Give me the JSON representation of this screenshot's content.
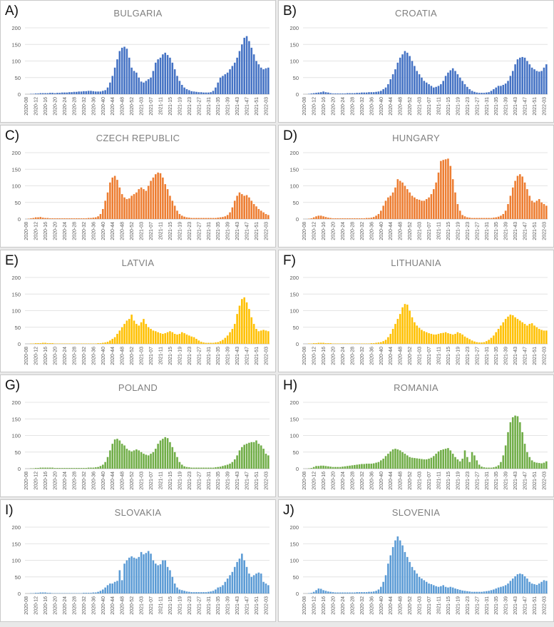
{
  "weeks": [
    "2020-08",
    "2020-09",
    "2020-10",
    "2020-11",
    "2020-12",
    "2020-13",
    "2020-14",
    "2020-15",
    "2020-16",
    "2020-17",
    "2020-18",
    "2020-19",
    "2020-20",
    "2020-21",
    "2020-22",
    "2020-23",
    "2020-24",
    "2020-25",
    "2020-26",
    "2020-27",
    "2020-28",
    "2020-29",
    "2020-30",
    "2020-31",
    "2020-32",
    "2020-33",
    "2020-34",
    "2020-35",
    "2020-36",
    "2020-37",
    "2020-38",
    "2020-39",
    "2020-40",
    "2020-41",
    "2020-42",
    "2020-43",
    "2020-44",
    "2020-45",
    "2020-46",
    "2020-47",
    "2020-48",
    "2020-49",
    "2020-50",
    "2020-51",
    "2020-52",
    "2020-53",
    "2021-01",
    "2021-02",
    "2021-03",
    "2021-04",
    "2021-05",
    "2021-06",
    "2021-07",
    "2021-08",
    "2021-09",
    "2021-10",
    "2021-11",
    "2021-12",
    "2021-13",
    "2021-14",
    "2021-15",
    "2021-16",
    "2021-17",
    "2021-18",
    "2021-19",
    "2021-20",
    "2021-21",
    "2021-22",
    "2021-23",
    "2021-24",
    "2021-25",
    "2021-26",
    "2021-27",
    "2021-28",
    "2021-29",
    "2021-30",
    "2021-31",
    "2021-32",
    "2021-33",
    "2021-34",
    "2021-35",
    "2021-36",
    "2021-37",
    "2021-38",
    "2021-39",
    "2021-40",
    "2021-41",
    "2021-42",
    "2021-43",
    "2021-44",
    "2021-45",
    "2021-46",
    "2021-47",
    "2021-48",
    "2021-49",
    "2021-50",
    "2021-51",
    "2021-52",
    "2022-01",
    "2022-02",
    "2022-03",
    "2022-04"
  ],
  "tick_labels": [
    "2020-08",
    "2020-12",
    "2020-16",
    "2020-20",
    "2020-24",
    "2020-28",
    "2020-32",
    "2020-36",
    "2020-40",
    "2020-44",
    "2020-48",
    "2020-52",
    "2021-03",
    "2021-07",
    "2021-11",
    "2021-15",
    "2021-19",
    "2021-23",
    "2021-27",
    "2021-31",
    "2021-35",
    "2021-39",
    "2021-43",
    "2021-47",
    "2021-51",
    "2022-03"
  ],
  "y_ticks": [
    0,
    50,
    100,
    150,
    200
  ],
  "panels": [
    {
      "letter": "A)",
      "title": "BULGARIA",
      "color": "#4472c4"
    },
    {
      "letter": "B)",
      "title": "CROATIA",
      "color": "#4472c4"
    },
    {
      "letter": "C)",
      "title": "CZECH REPUBLIC",
      "color": "#ed7d31"
    },
    {
      "letter": "D)",
      "title": "HUNGARY",
      "color": "#ed7d31"
    },
    {
      "letter": "E)",
      "title": "LATVIA",
      "color": "#ffc000"
    },
    {
      "letter": "F)",
      "title": "LITHUANIA",
      "color": "#ffc000"
    },
    {
      "letter": "G)",
      "title": "POLAND",
      "color": "#70ad47"
    },
    {
      "letter": "H)",
      "title": "ROMANIA",
      "color": "#70ad47"
    },
    {
      "letter": "I)",
      "title": "SLOVAKIA",
      "color": "#5b9bd5"
    },
    {
      "letter": "J)",
      "title": "SLOVENIA",
      "color": "#5b9bd5"
    }
  ],
  "chart_data": [
    {
      "type": "bar",
      "title": "BULGARIA",
      "ylim": [
        0,
        200
      ],
      "x_start": "2020-08",
      "values": [
        0,
        0,
        1,
        1,
        2,
        2,
        3,
        3,
        3,
        3,
        4,
        4,
        3,
        4,
        4,
        5,
        5,
        5,
        6,
        6,
        7,
        7,
        8,
        8,
        9,
        9,
        10,
        10,
        9,
        8,
        8,
        8,
        10,
        12,
        20,
        35,
        55,
        80,
        105,
        130,
        140,
        143,
        137,
        110,
        80,
        70,
        65,
        50,
        38,
        35,
        40,
        45,
        50,
        70,
        95,
        105,
        110,
        120,
        125,
        118,
        110,
        95,
        75,
        55,
        40,
        28,
        20,
        15,
        12,
        9,
        8,
        7,
        6,
        6,
        5,
        5,
        5,
        6,
        10,
        20,
        35,
        50,
        55,
        60,
        65,
        75,
        85,
        95,
        110,
        130,
        150,
        170,
        175,
        160,
        140,
        120,
        100,
        90,
        80,
        75,
        78,
        80,
        75
      ]
    },
    {
      "type": "bar",
      "title": "CROATIA",
      "ylim": [
        0,
        200
      ],
      "x_start": "2020-08",
      "values": [
        0,
        0,
        1,
        2,
        3,
        4,
        5,
        6,
        8,
        6,
        5,
        3,
        2,
        2,
        2,
        2,
        2,
        2,
        3,
        3,
        3,
        3,
        4,
        4,
        5,
        5,
        5,
        6,
        6,
        6,
        7,
        8,
        10,
        15,
        20,
        30,
        45,
        60,
        75,
        95,
        110,
        120,
        130,
        125,
        115,
        100,
        85,
        70,
        60,
        50,
        40,
        35,
        30,
        25,
        20,
        22,
        25,
        30,
        40,
        55,
        65,
        72,
        78,
        70,
        60,
        50,
        40,
        30,
        22,
        15,
        10,
        7,
        5,
        4,
        4,
        4,
        5,
        6,
        10,
        15,
        20,
        25,
        25,
        28,
        32,
        40,
        55,
        70,
        90,
        105,
        110,
        112,
        110,
        100,
        90,
        80,
        75,
        70,
        68,
        70,
        80,
        90,
        95
      ]
    },
    {
      "type": "bar",
      "title": "CZECH REPUBLIC",
      "ylim": [
        0,
        200
      ],
      "x_start": "2020-08",
      "values": [
        0,
        1,
        2,
        3,
        5,
        5,
        6,
        4,
        3,
        3,
        2,
        2,
        2,
        2,
        2,
        2,
        2,
        2,
        2,
        2,
        2,
        2,
        2,
        2,
        2,
        2,
        3,
        3,
        4,
        5,
        8,
        15,
        30,
        55,
        80,
        110,
        125,
        130,
        118,
        95,
        75,
        65,
        60,
        62,
        70,
        75,
        80,
        90,
        95,
        90,
        85,
        100,
        115,
        125,
        135,
        140,
        138,
        125,
        105,
        90,
        70,
        55,
        40,
        25,
        15,
        10,
        7,
        5,
        4,
        3,
        3,
        3,
        3,
        3,
        3,
        3,
        3,
        3,
        3,
        3,
        4,
        5,
        6,
        8,
        12,
        20,
        35,
        55,
        70,
        80,
        75,
        70,
        72,
        65,
        55,
        45,
        38,
        30,
        25,
        20,
        15,
        12,
        10
      ]
    },
    {
      "type": "bar",
      "title": "HUNGARY",
      "ylim": [
        0,
        200
      ],
      "x_start": "2020-08",
      "values": [
        0,
        0,
        1,
        2,
        5,
        8,
        10,
        10,
        8,
        6,
        4,
        3,
        2,
        2,
        2,
        2,
        2,
        2,
        2,
        2,
        2,
        2,
        2,
        2,
        2,
        2,
        3,
        3,
        4,
        6,
        10,
        15,
        25,
        40,
        55,
        65,
        70,
        80,
        95,
        120,
        115,
        110,
        100,
        90,
        80,
        70,
        65,
        60,
        58,
        55,
        55,
        60,
        65,
        75,
        90,
        110,
        140,
        175,
        178,
        180,
        182,
        160,
        120,
        80,
        45,
        25,
        12,
        8,
        5,
        4,
        3,
        3,
        3,
        3,
        3,
        3,
        3,
        3,
        3,
        4,
        5,
        7,
        10,
        15,
        25,
        45,
        70,
        95,
        115,
        130,
        135,
        128,
        110,
        90,
        70,
        55,
        50,
        55,
        60,
        50,
        45,
        40,
        38
      ]
    },
    {
      "type": "bar",
      "title": "LATVIA",
      "ylim": [
        0,
        200
      ],
      "x_start": "2020-08",
      "values": [
        0,
        0,
        1,
        1,
        2,
        2,
        2,
        3,
        3,
        2,
        2,
        2,
        1,
        1,
        1,
        1,
        1,
        1,
        1,
        1,
        1,
        1,
        1,
        1,
        1,
        1,
        1,
        1,
        1,
        1,
        2,
        2,
        3,
        4,
        6,
        10,
        15,
        20,
        30,
        40,
        50,
        60,
        70,
        75,
        88,
        70,
        60,
        55,
        65,
        75,
        60,
        50,
        45,
        40,
        38,
        35,
        32,
        30,
        32,
        35,
        38,
        35,
        30,
        28,
        30,
        35,
        32,
        28,
        25,
        22,
        20,
        15,
        10,
        6,
        4,
        3,
        3,
        3,
        3,
        4,
        5,
        8,
        12,
        18,
        25,
        35,
        45,
        60,
        90,
        115,
        135,
        140,
        125,
        105,
        80,
        60,
        45,
        38,
        40,
        42,
        40,
        38,
        36
      ]
    },
    {
      "type": "bar",
      "title": "LITHUANIA",
      "ylim": [
        0,
        200
      ],
      "x_start": "2020-08",
      "values": [
        0,
        0,
        1,
        1,
        2,
        2,
        3,
        3,
        3,
        2,
        2,
        2,
        1,
        1,
        1,
        1,
        1,
        1,
        1,
        1,
        1,
        1,
        1,
        1,
        1,
        1,
        1,
        1,
        2,
        2,
        3,
        4,
        5,
        8,
        12,
        20,
        30,
        45,
        60,
        75,
        90,
        110,
        120,
        118,
        100,
        80,
        65,
        55,
        48,
        42,
        38,
        35,
        32,
        30,
        28,
        28,
        30,
        32,
        33,
        35,
        32,
        30,
        28,
        30,
        35,
        32,
        28,
        22,
        18,
        14,
        10,
        7,
        5,
        4,
        4,
        5,
        8,
        12,
        18,
        25,
        35,
        45,
        55,
        65,
        75,
        82,
        88,
        86,
        80,
        75,
        70,
        65,
        60,
        55,
        60,
        62,
        55,
        50,
        45,
        42,
        40,
        40,
        38
      ]
    },
    {
      "type": "bar",
      "title": "POLAND",
      "ylim": [
        0,
        200
      ],
      "x_start": "2020-08",
      "values": [
        0,
        0,
        1,
        1,
        2,
        2,
        3,
        3,
        3,
        3,
        3,
        3,
        2,
        2,
        2,
        2,
        2,
        2,
        2,
        2,
        2,
        2,
        2,
        2,
        2,
        2,
        3,
        3,
        3,
        4,
        5,
        8,
        12,
        20,
        35,
        55,
        75,
        88,
        90,
        85,
        75,
        70,
        60,
        55,
        52,
        55,
        58,
        55,
        50,
        45,
        42,
        40,
        45,
        50,
        60,
        75,
        85,
        90,
        95,
        92,
        80,
        65,
        50,
        35,
        20,
        12,
        7,
        5,
        4,
        3,
        3,
        3,
        3,
        3,
        3,
        3,
        3,
        3,
        3,
        4,
        5,
        6,
        8,
        10,
        12,
        15,
        20,
        28,
        40,
        55,
        65,
        72,
        75,
        78,
        80,
        80,
        85,
        75,
        70,
        60,
        45,
        40,
        35
      ]
    },
    {
      "type": "bar",
      "title": "ROMANIA",
      "ylim": [
        0,
        200
      ],
      "x_start": "2020-08",
      "values": [
        0,
        0,
        1,
        2,
        5,
        8,
        8,
        9,
        9,
        8,
        7,
        6,
        5,
        5,
        5,
        5,
        6,
        7,
        8,
        9,
        10,
        11,
        12,
        13,
        14,
        14,
        15,
        15,
        15,
        16,
        18,
        20,
        25,
        30,
        38,
        45,
        52,
        58,
        60,
        58,
        55,
        50,
        45,
        40,
        35,
        33,
        32,
        31,
        30,
        29,
        28,
        28,
        30,
        33,
        38,
        45,
        52,
        56,
        58,
        60,
        62,
        55,
        45,
        35,
        28,
        22,
        30,
        55,
        35,
        20,
        50,
        40,
        25,
        12,
        6,
        4,
        3,
        3,
        3,
        4,
        6,
        10,
        20,
        40,
        70,
        110,
        140,
        155,
        160,
        158,
        140,
        110,
        75,
        50,
        35,
        25,
        20,
        18,
        17,
        16,
        18,
        22,
        25
      ]
    },
    {
      "type": "bar",
      "title": "SLOVAKIA",
      "ylim": [
        0,
        200
      ],
      "x_start": "2020-08",
      "values": [
        0,
        0,
        1,
        1,
        2,
        2,
        3,
        3,
        3,
        2,
        2,
        1,
        1,
        1,
        1,
        1,
        1,
        1,
        1,
        1,
        1,
        1,
        1,
        1,
        2,
        2,
        2,
        2,
        3,
        3,
        5,
        8,
        12,
        18,
        25,
        30,
        30,
        35,
        38,
        70,
        40,
        90,
        100,
        108,
        112,
        108,
        105,
        110,
        125,
        118,
        122,
        128,
        120,
        100,
        90,
        85,
        88,
        100,
        100,
        80,
        70,
        50,
        30,
        18,
        12,
        10,
        8,
        6,
        5,
        4,
        4,
        4,
        4,
        4,
        4,
        4,
        5,
        6,
        8,
        12,
        18,
        20,
        25,
        35,
        45,
        55,
        65,
        80,
        95,
        105,
        120,
        100,
        80,
        60,
        50,
        55,
        60,
        63,
        60,
        35,
        30,
        25,
        22
      ]
    },
    {
      "type": "bar",
      "title": "SLOVENIA",
      "ylim": [
        0,
        200
      ],
      "x_start": "2020-08",
      "values": [
        0,
        0,
        1,
        2,
        5,
        10,
        15,
        14,
        10,
        8,
        6,
        5,
        4,
        3,
        3,
        3,
        3,
        3,
        3,
        3,
        3,
        3,
        4,
        4,
        4,
        4,
        4,
        5,
        5,
        6,
        8,
        12,
        20,
        35,
        55,
        90,
        115,
        140,
        160,
        172,
        160,
        145,
        125,
        110,
        95,
        80,
        70,
        60,
        50,
        45,
        40,
        35,
        30,
        28,
        25,
        22,
        20,
        22,
        25,
        20,
        18,
        20,
        18,
        15,
        13,
        11,
        9,
        8,
        7,
        6,
        5,
        5,
        5,
        5,
        5,
        6,
        7,
        8,
        10,
        12,
        15,
        18,
        20,
        22,
        25,
        30,
        38,
        45,
        52,
        58,
        60,
        58,
        52,
        45,
        35,
        30,
        28,
        26,
        30,
        35,
        40,
        38,
        35
      ]
    }
  ]
}
